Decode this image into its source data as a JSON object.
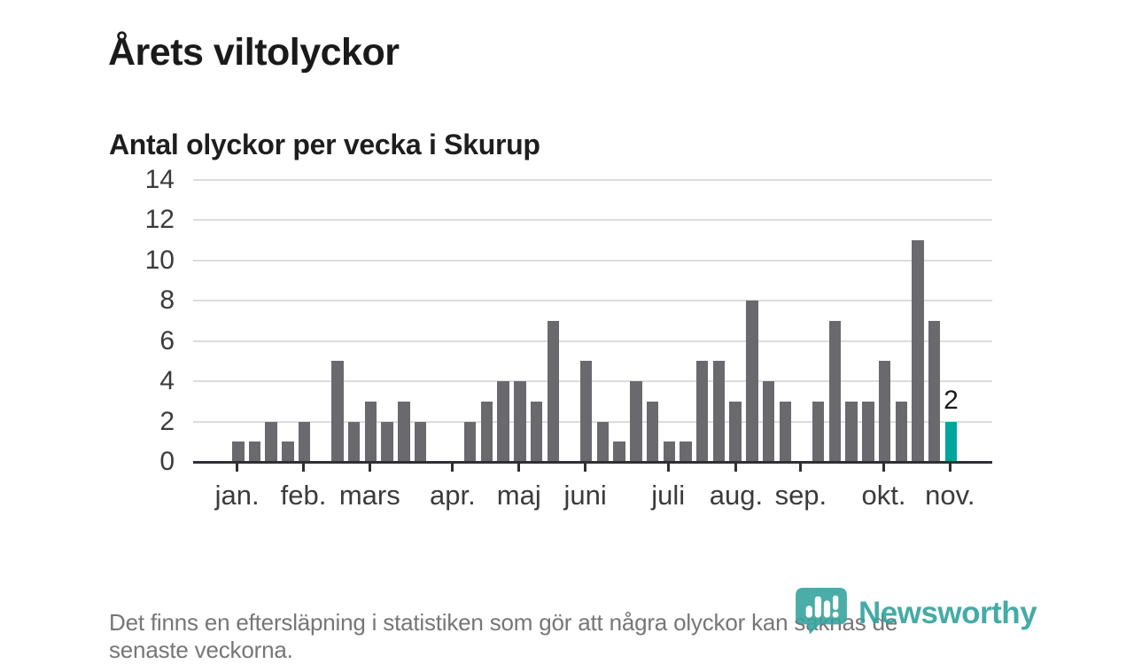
{
  "header": {
    "title": "Årets viltolyckor",
    "subtitle": "Antal olyckor per vecka i Skurup"
  },
  "chart_data": {
    "type": "bar",
    "title": "Årets viltolyckor",
    "subtitle": "Antal olyckor per vecka i Skurup",
    "x_unit": "vecka",
    "values": [
      1,
      1,
      2,
      1,
      2,
      null,
      5,
      2,
      3,
      2,
      3,
      2,
      null,
      null,
      2,
      3,
      4,
      4,
      3,
      7,
      null,
      5,
      2,
      1,
      4,
      3,
      1,
      1,
      5,
      5,
      3,
      8,
      4,
      3,
      null,
      3,
      7,
      3,
      3,
      5,
      3,
      11,
      7,
      2
    ],
    "highlight": {
      "index": 43,
      "label": "2",
      "color": "#00a59d"
    },
    "months": [
      {
        "label": "jan.",
        "week": 0.3
      },
      {
        "label": "feb.",
        "week": 4.3
      },
      {
        "label": "mars",
        "week": 8.3
      },
      {
        "label": "apr.",
        "week": 13.3
      },
      {
        "label": "maj",
        "week": 17.3
      },
      {
        "label": "juni",
        "week": 21.3
      },
      {
        "label": "juli",
        "week": 26.3
      },
      {
        "label": "aug.",
        "week": 30.4
      },
      {
        "label": "sep.",
        "week": 34.3
      },
      {
        "label": "okt.",
        "week": 39.3
      },
      {
        "label": "nov.",
        "week": 43.3
      }
    ],
    "yticks": [
      0,
      2,
      4,
      6,
      8,
      10,
      12,
      14
    ],
    "ylim": [
      0,
      14
    ],
    "grid": true,
    "legend": "none",
    "bar_color": "#6a696e",
    "gridline_color": "#dcdcdc",
    "axis_color": "#302f33"
  },
  "footer": {
    "note": "Det finns en eftersläpning i statistiken som gör att några olyckor kan saknas de\nsenaste veckorna."
  },
  "logo": {
    "text": "Newsworthy",
    "color": "#31a39d",
    "icon": "newsworthy-pin-barchart-icon"
  }
}
